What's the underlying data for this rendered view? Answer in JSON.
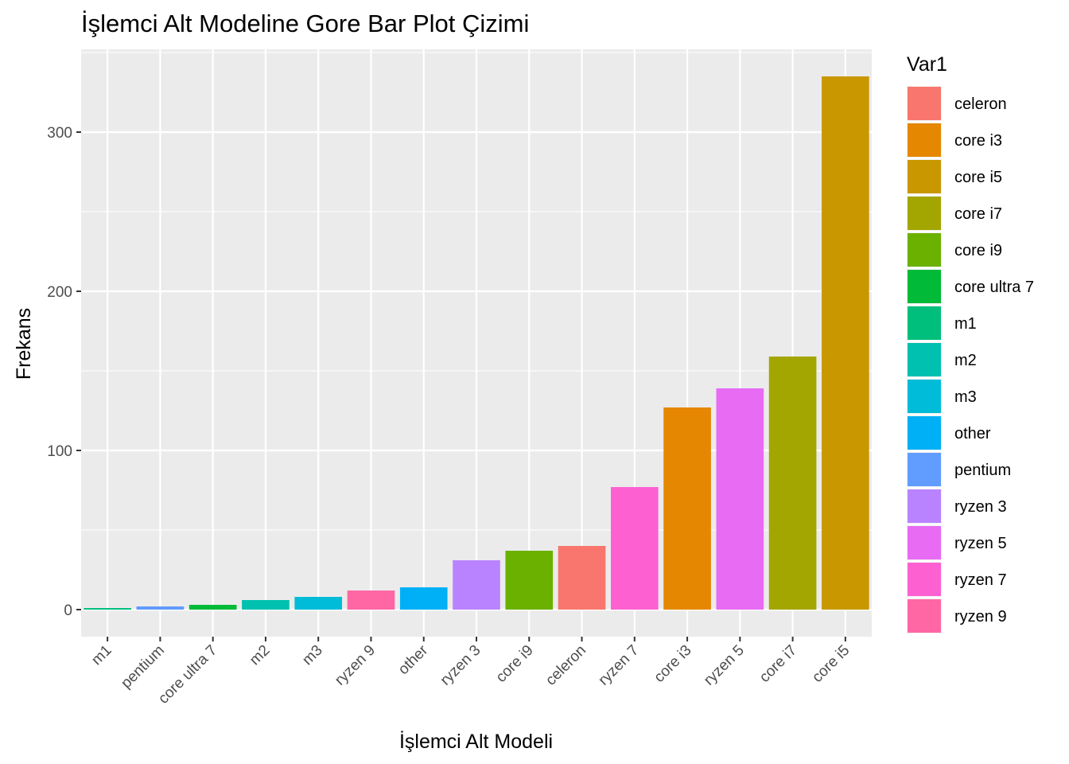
{
  "chart_data": {
    "type": "bar",
    "title": "İşlemci Alt Modeline Gore Bar Plot Çizimi",
    "xlabel": "İşlemci Alt Modeli",
    "ylabel": "Frekans",
    "categories": [
      "m1",
      "pentium",
      "core ultra 7",
      "m2",
      "m3",
      "ryzen 9",
      "other",
      "ryzen 3",
      "core i9",
      "celeron",
      "ryzen 7",
      "core i3",
      "ryzen 5",
      "core i7",
      "core i5"
    ],
    "values": [
      1,
      2,
      3,
      6,
      8,
      12,
      14,
      31,
      37,
      40,
      77,
      127,
      139,
      159,
      335
    ],
    "ylim": [
      -17,
      352
    ],
    "yticks": [
      0,
      100,
      200,
      300
    ],
    "grid": true,
    "legend": {
      "title": "Var1",
      "position": "right",
      "items": [
        {
          "label": "celeron",
          "color": "#F8766D"
        },
        {
          "label": "core i3",
          "color": "#E58700"
        },
        {
          "label": "core i5",
          "color": "#C99800"
        },
        {
          "label": "core i7",
          "color": "#A3A500"
        },
        {
          "label": "core i9",
          "color": "#6BB100"
        },
        {
          "label": "core ultra 7",
          "color": "#00BA38"
        },
        {
          "label": "m1",
          "color": "#00BF7D"
        },
        {
          "label": "m2",
          "color": "#00C0AF"
        },
        {
          "label": "m3",
          "color": "#00BCD8"
        },
        {
          "label": "other",
          "color": "#00B0F6"
        },
        {
          "label": "pentium",
          "color": "#619CFF"
        },
        {
          "label": "ryzen 3",
          "color": "#B983FF"
        },
        {
          "label": "ryzen 5",
          "color": "#E76BF3"
        },
        {
          "label": "ryzen 7",
          "color": "#FD61D1"
        },
        {
          "label": "ryzen 9",
          "color": "#FF67A4"
        }
      ]
    },
    "panel_background": "#EBEBEB",
    "grid_color": "#FFFFFF"
  }
}
